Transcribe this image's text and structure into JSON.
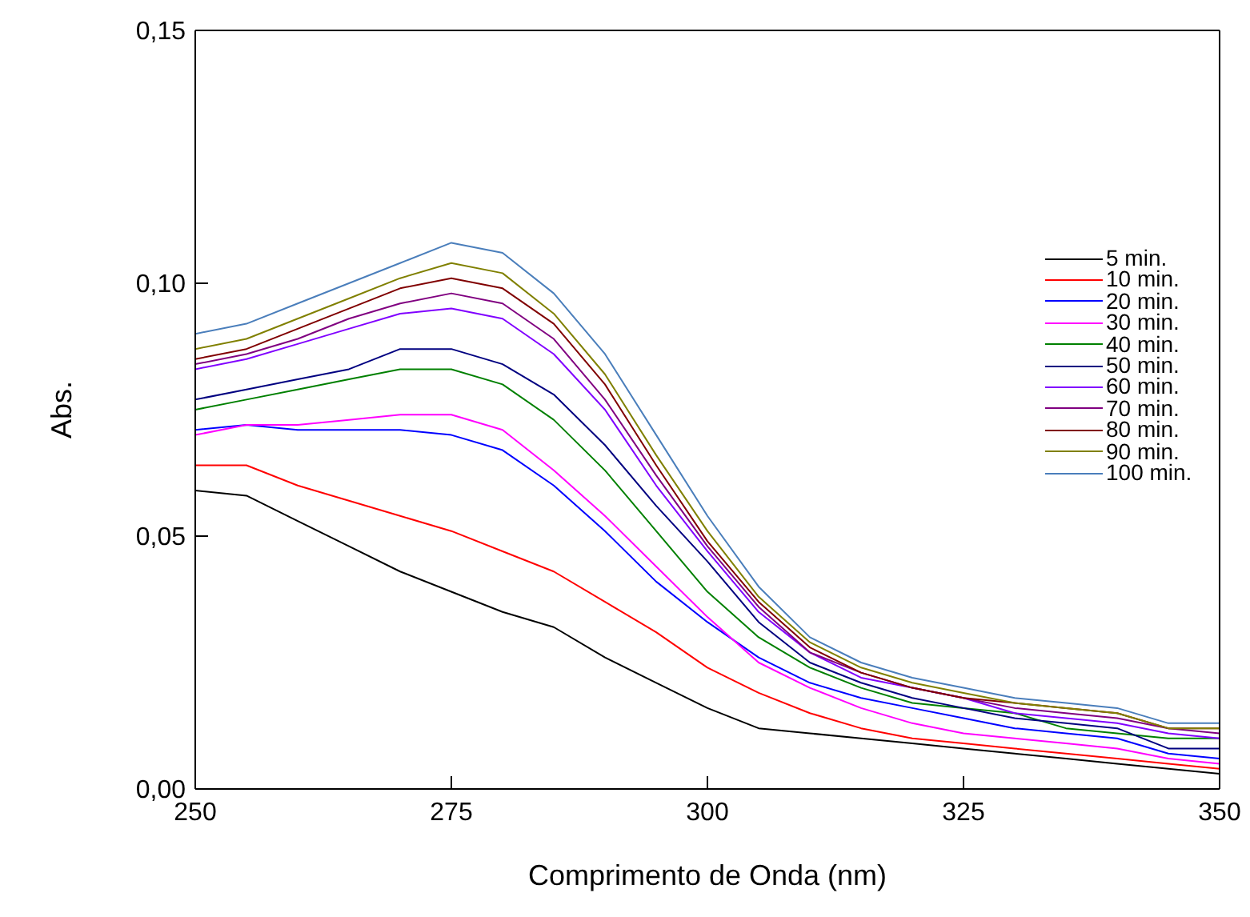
{
  "chart_data": {
    "type": "line",
    "xlabel": "Comprimento de Onda (nm)",
    "ylabel": "Abs.",
    "x": [
      250,
      255,
      260,
      265,
      270,
      275,
      280,
      285,
      290,
      295,
      300,
      305,
      310,
      315,
      320,
      325,
      330,
      335,
      340,
      345,
      350
    ],
    "xlim": [
      250,
      350
    ],
    "xticks": [
      250,
      275,
      300,
      325,
      350
    ],
    "ylim": [
      0,
      0.15
    ],
    "yticks": [
      {
        "value": 0,
        "label": "0,00"
      },
      {
        "value": 0.05,
        "label": "0,05"
      },
      {
        "value": 0.1,
        "label": "0,10"
      },
      {
        "value": 0.15,
        "label": "0,15"
      }
    ],
    "grid": false,
    "legend": "top right",
    "marker": "none",
    "line_style": "solid",
    "series": [
      {
        "name": "5 min.",
        "color": "#000000",
        "values": [
          0.059,
          0.058,
          0.053,
          0.048,
          0.043,
          0.039,
          0.035,
          0.032,
          0.026,
          0.021,
          0.016,
          0.012,
          0.011,
          0.01,
          0.009,
          0.008,
          0.007,
          0.006,
          0.005,
          0.004,
          0.003
        ]
      },
      {
        "name": "10 min.",
        "color": "#ff0000",
        "values": [
          0.064,
          0.064,
          0.06,
          0.057,
          0.054,
          0.051,
          0.047,
          0.043,
          0.037,
          0.031,
          0.024,
          0.019,
          0.015,
          0.012,
          0.01,
          0.009,
          0.008,
          0.007,
          0.006,
          0.005,
          0.004
        ]
      },
      {
        "name": "20 min.",
        "color": "#0000ff",
        "values": [
          0.071,
          0.072,
          0.071,
          0.071,
          0.071,
          0.07,
          0.067,
          0.06,
          0.051,
          0.041,
          0.033,
          0.026,
          0.021,
          0.018,
          0.016,
          0.014,
          0.012,
          0.011,
          0.01,
          0.007,
          0.006
        ]
      },
      {
        "name": "30 min.",
        "color": "#ff00ff",
        "values": [
          0.07,
          0.072,
          0.072,
          0.073,
          0.074,
          0.074,
          0.071,
          0.063,
          0.054,
          0.044,
          0.034,
          0.025,
          0.02,
          0.016,
          0.013,
          0.011,
          0.01,
          0.009,
          0.008,
          0.006,
          0.005
        ]
      },
      {
        "name": "40 min.",
        "color": "#008000",
        "values": [
          0.075,
          0.077,
          0.079,
          0.081,
          0.083,
          0.083,
          0.08,
          0.073,
          0.063,
          0.051,
          0.039,
          0.03,
          0.024,
          0.02,
          0.017,
          0.016,
          0.015,
          0.012,
          0.011,
          0.01,
          0.01
        ]
      },
      {
        "name": "50 min.",
        "color": "#000080",
        "values": [
          0.077,
          0.079,
          0.081,
          0.083,
          0.087,
          0.087,
          0.084,
          0.078,
          0.068,
          0.056,
          0.045,
          0.033,
          0.025,
          0.021,
          0.018,
          0.016,
          0.014,
          0.013,
          0.012,
          0.008,
          0.008
        ]
      },
      {
        "name": "60 min.",
        "color": "#8000ff",
        "values": [
          0.083,
          0.085,
          0.088,
          0.091,
          0.094,
          0.095,
          0.093,
          0.086,
          0.075,
          0.06,
          0.047,
          0.035,
          0.027,
          0.022,
          0.02,
          0.018,
          0.015,
          0.014,
          0.013,
          0.011,
          0.01
        ]
      },
      {
        "name": "70 min.",
        "color": "#800080",
        "values": [
          0.084,
          0.086,
          0.089,
          0.093,
          0.096,
          0.098,
          0.096,
          0.089,
          0.077,
          0.062,
          0.048,
          0.036,
          0.027,
          0.023,
          0.02,
          0.018,
          0.016,
          0.015,
          0.014,
          0.012,
          0.011
        ]
      },
      {
        "name": "80 min.",
        "color": "#800000",
        "values": [
          0.085,
          0.087,
          0.091,
          0.095,
          0.099,
          0.101,
          0.099,
          0.092,
          0.08,
          0.064,
          0.049,
          0.037,
          0.028,
          0.023,
          0.02,
          0.018,
          0.017,
          0.016,
          0.015,
          0.012,
          0.012
        ]
      },
      {
        "name": "90 min.",
        "color": "#808000",
        "values": [
          0.087,
          0.089,
          0.093,
          0.097,
          0.101,
          0.104,
          0.102,
          0.094,
          0.082,
          0.066,
          0.051,
          0.038,
          0.029,
          0.024,
          0.021,
          0.019,
          0.017,
          0.016,
          0.015,
          0.012,
          0.012
        ]
      },
      {
        "name": "100 min.",
        "color": "#4a7ebb",
        "values": [
          0.09,
          0.092,
          0.096,
          0.1,
          0.104,
          0.108,
          0.106,
          0.098,
          0.086,
          0.07,
          0.054,
          0.04,
          0.03,
          0.025,
          0.022,
          0.02,
          0.018,
          0.017,
          0.016,
          0.013,
          0.013
        ]
      }
    ]
  }
}
